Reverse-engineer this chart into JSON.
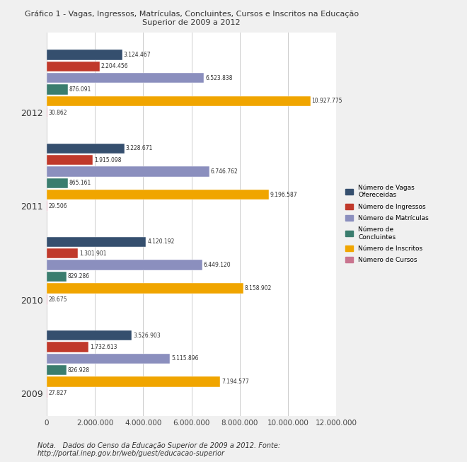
{
  "title": "Gráfico 1 - Vagas, Ingressos, Matrículas, Concluintes, Cursos e Inscritos na Educação\nSuperior de 2009 a 2012",
  "years": [
    "2009",
    "2010",
    "2011",
    "2012"
  ],
  "categories": [
    "Número de Vagas\nOfereceidas",
    "Número de Ingressos",
    "Número de Matrículas",
    "Número de\nConcluintes",
    "Número de Inscritos",
    "Número de Cursos"
  ],
  "data": {
    "2009": {
      "vagas": 3526903,
      "ingressos": 1732613,
      "matriculas": 5115896,
      "concluintes": 826928,
      "inscritos": 7194577,
      "cursos": 27827
    },
    "2010": {
      "vagas": 4120192,
      "ingressos": 1301901,
      "matriculas": 6449120,
      "concluintes": 829286,
      "inscritos": 8158902,
      "cursos": 28675
    },
    "2011": {
      "vagas": 3228671,
      "ingressos": 1915098,
      "matriculas": 6746762,
      "concluintes": 865161,
      "inscritos": 9196587,
      "cursos": 29506
    },
    "2012": {
      "vagas": 3124467,
      "ingressos": 2204456,
      "matriculas": 6523838,
      "concluintes": 876091,
      "inscritos": 10927775,
      "cursos": 30862
    }
  },
  "colors": {
    "vagas": "#354f6e",
    "ingressos": "#c0392b",
    "matriculas": "#8b8fbe",
    "concluintes": "#3a7d6e",
    "inscritos": "#f0a500",
    "cursos": "#c9748f"
  },
  "xlim": [
    0,
    12000000
  ],
  "xtick_labels": [
    "0",
    "2.000.000",
    "4.000.000",
    "6.000.000",
    "8.000.000",
    "10.000.000",
    "12.000.000"
  ],
  "xtick_values": [
    0,
    2000000,
    4000000,
    6000000,
    8000000,
    10000000,
    12000000
  ],
  "note": "Nota.   Dados do Censo da Educação Superior de 2009 a 2012. Fonte:\nhttp://portal.inep.gov.br/web/guest/educacao-superior",
  "background_color": "#f0f0f0",
  "plot_background_color": "#ffffff"
}
